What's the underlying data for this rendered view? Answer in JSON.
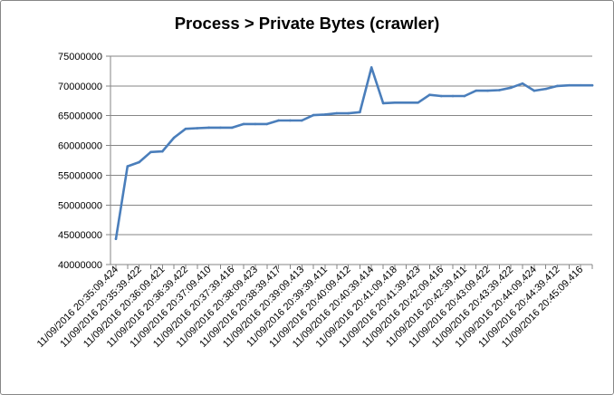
{
  "chart_data": {
    "type": "line",
    "title": "Process > Private Bytes (crawler)",
    "xlabel": "",
    "ylabel": "",
    "ylim": [
      40000000,
      75000000
    ],
    "yticks": [
      40000000,
      45000000,
      50000000,
      55000000,
      60000000,
      65000000,
      70000000,
      75000000
    ],
    "ytick_labels": [
      "40000000",
      "45000000",
      "50000000",
      "55000000",
      "60000000",
      "65000000",
      "70000000",
      "75000000"
    ],
    "grid": "horizontal",
    "legend": "none",
    "line_color": "#4a7ebb",
    "x_tick_labels": [
      "11/09/2016  20:35:09.424",
      "11/09/2016  20:35:39.422",
      "11/09/2016  20:36:09.421",
      "11/09/2016  20:36:39.422",
      "11/09/2016  20:37:09.410",
      "11/09/2016  20:37:39.416",
      "11/09/2016  20:38:09.423",
      "11/09/2016  20:38:39.417",
      "11/09/2016  20:39:09.413",
      "11/09/2016  20:39:39.411",
      "11/09/2016  20:40:09.412",
      "11/09/2016  20:40:39.414",
      "11/09/2016  20:41:09.418",
      "11/09/2016  20:41:39.423",
      "11/09/2016  20:42:09.416",
      "11/09/2016  20:42:39.411",
      "11/09/2016  20:43:09.422",
      "11/09/2016  20:43:39.422",
      "11/09/2016  20:44:09.424",
      "11/09/2016  20:44:39.412",
      "11/09/2016  20:45:09.416"
    ],
    "values": [
      44300000,
      56500000,
      57200000,
      58900000,
      59000000,
      61300000,
      62800000,
      62900000,
      63000000,
      63000000,
      63000000,
      63600000,
      63600000,
      63600000,
      64200000,
      64200000,
      64200000,
      65100000,
      65200000,
      65400000,
      65400000,
      65600000,
      73100000,
      67100000,
      67200000,
      67200000,
      67200000,
      68500000,
      68300000,
      68300000,
      68300000,
      69200000,
      69200000,
      69300000,
      69700000,
      70400000,
      69200000,
      69500000,
      70000000,
      70100000,
      70100000,
      70100000
    ]
  }
}
